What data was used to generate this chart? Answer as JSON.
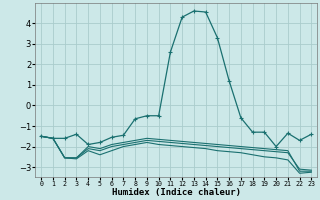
{
  "xlabel": "Humidex (Indice chaleur)",
  "ylabel": "",
  "background_color": "#cce8e8",
  "grid_color": "#aacccc",
  "line_color": "#1a7070",
  "xlim": [
    -0.5,
    23.5
  ],
  "ylim": [
    -3.5,
    5.0
  ],
  "yticks": [
    -3,
    -2,
    -1,
    0,
    1,
    2,
    3,
    4
  ],
  "xtick_labels": [
    "0",
    "1",
    "2",
    "3",
    "4",
    "5",
    "6",
    "7",
    "8",
    "9",
    "10",
    "11",
    "12",
    "13",
    "14",
    "15",
    "16",
    "17",
    "18",
    "19",
    "20",
    "21",
    "22",
    "23"
  ],
  "lines": [
    {
      "x": [
        0,
        1,
        2,
        3,
        4,
        5,
        6,
        7,
        8,
        9,
        10,
        11,
        12,
        13,
        14,
        15,
        16,
        17,
        18,
        19,
        20,
        21,
        22,
        23
      ],
      "y": [
        -1.5,
        -1.6,
        -1.6,
        -1.4,
        -1.9,
        -1.8,
        -1.55,
        -1.45,
        -0.65,
        -0.5,
        -0.5,
        2.6,
        4.3,
        4.6,
        4.55,
        3.3,
        1.2,
        -0.6,
        -1.3,
        -1.3,
        -2.0,
        -1.35,
        -1.7,
        -1.4
      ],
      "has_markers": true
    },
    {
      "x": [
        0,
        1,
        2,
        3,
        4,
        5,
        6,
        7,
        8,
        9,
        10,
        11,
        12,
        13,
        14,
        15,
        16,
        17,
        18,
        19,
        20,
        21,
        22,
        23
      ],
      "y": [
        -1.5,
        -1.6,
        -2.55,
        -2.55,
        -2.1,
        -2.2,
        -2.0,
        -1.9,
        -1.8,
        -1.7,
        -1.75,
        -1.8,
        -1.85,
        -1.9,
        -1.95,
        -2.0,
        -2.05,
        -2.1,
        -2.15,
        -2.2,
        -2.25,
        -2.3,
        -3.1,
        -3.15
      ],
      "has_markers": false
    },
    {
      "x": [
        0,
        1,
        2,
        3,
        4,
        5,
        6,
        7,
        8,
        9,
        10,
        11,
        12,
        13,
        14,
        15,
        16,
        17,
        18,
        19,
        20,
        21,
        22,
        23
      ],
      "y": [
        -1.5,
        -1.6,
        -2.55,
        -2.55,
        -2.0,
        -2.1,
        -1.9,
        -1.8,
        -1.7,
        -1.6,
        -1.65,
        -1.7,
        -1.75,
        -1.8,
        -1.85,
        -1.9,
        -1.95,
        -2.0,
        -2.05,
        -2.1,
        -2.15,
        -2.2,
        -3.2,
        -3.2
      ],
      "has_markers": false
    },
    {
      "x": [
        0,
        1,
        2,
        3,
        4,
        5,
        6,
        7,
        8,
        9,
        10,
        11,
        12,
        13,
        14,
        15,
        16,
        17,
        18,
        19,
        20,
        21,
        22,
        23
      ],
      "y": [
        -1.5,
        -1.6,
        -2.55,
        -2.6,
        -2.2,
        -2.4,
        -2.2,
        -2.0,
        -1.9,
        -1.8,
        -1.9,
        -1.95,
        -2.0,
        -2.05,
        -2.1,
        -2.2,
        -2.25,
        -2.3,
        -2.4,
        -2.5,
        -2.55,
        -2.65,
        -3.3,
        -3.25
      ],
      "has_markers": false
    }
  ]
}
